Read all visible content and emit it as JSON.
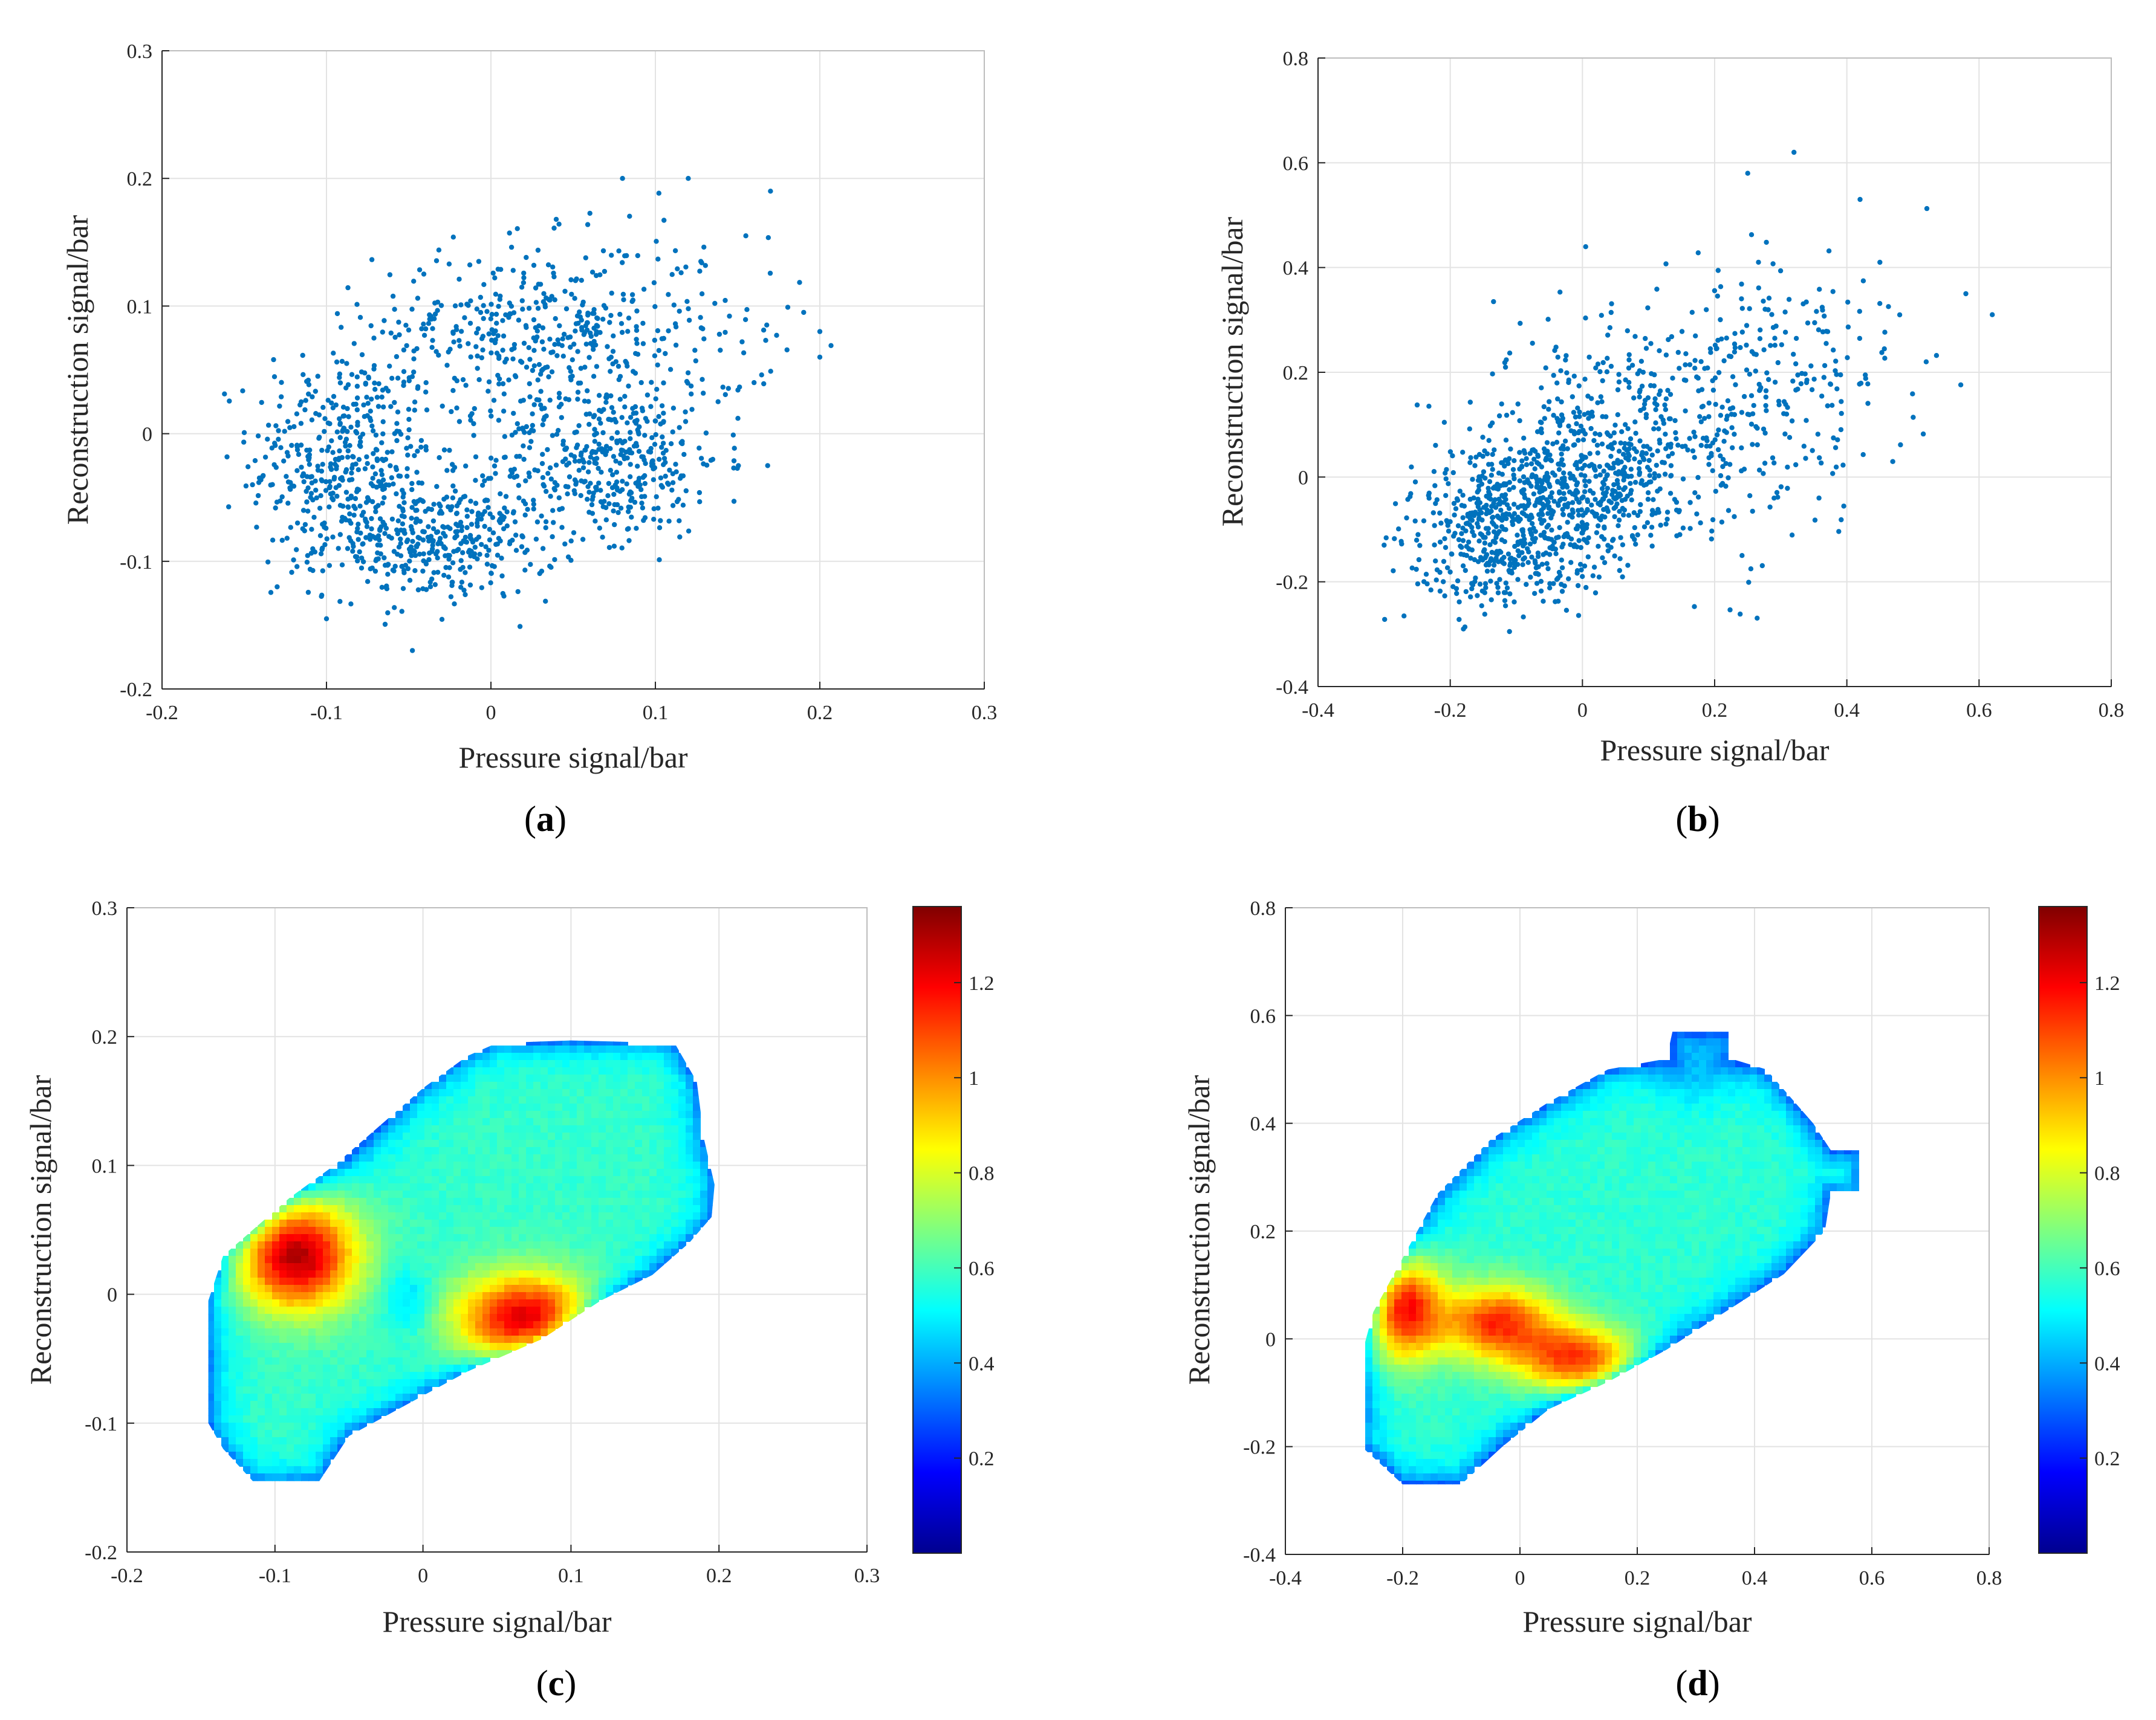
{
  "figure": {
    "panels": [
      {
        "id": "a",
        "label": "a",
        "type": "scatter"
      },
      {
        "id": "b",
        "label": "b",
        "type": "scatter"
      },
      {
        "id": "c",
        "label": "c",
        "type": "heatmap"
      },
      {
        "id": "d",
        "label": "d",
        "type": "heatmap"
      }
    ]
  },
  "colors": {
    "marker": "#0072BD",
    "grid": "#e3e3e3",
    "axis": "#262626",
    "colormap": [
      "#00008f",
      "#0000ff",
      "#00ffff",
      "#7fff7f",
      "#ffff00",
      "#ff0000",
      "#800000"
    ]
  },
  "chart_data": [
    {
      "id": "a",
      "type": "scatter",
      "panel_label": "a",
      "xlabel": "Pressure signal/bar",
      "ylabel": "Reconstruction signal/bar",
      "xlim": [
        -0.2,
        0.3
      ],
      "ylim": [
        -0.2,
        0.3
      ],
      "xticks": [
        -0.2,
        -0.1,
        0,
        0.1,
        0.2,
        0.3
      ],
      "yticks": [
        -0.2,
        -0.1,
        0,
        0.1,
        0.2,
        0.3
      ],
      "xtick_labels": [
        "-0.2",
        "-0.1",
        "0",
        "0.1",
        "0.2",
        "0.3"
      ],
      "ytick_labels": [
        "-0.2",
        "-0.1",
        "0",
        "0.1",
        "0.2",
        "0.3"
      ],
      "grid": true,
      "clusters": [
        {
          "cx": -0.09,
          "cy": -0.02,
          "sx": 0.028,
          "sy": 0.045,
          "n": 420
        },
        {
          "cx": -0.03,
          "cy": -0.085,
          "sx": 0.035,
          "sy": 0.022,
          "n": 380
        },
        {
          "cx": 0.07,
          "cy": -0.02,
          "sx": 0.035,
          "sy": 0.03,
          "n": 400
        },
        {
          "cx": 0.03,
          "cy": 0.08,
          "sx": 0.05,
          "sy": 0.035,
          "n": 420
        },
        {
          "cx": 0.13,
          "cy": 0.07,
          "sx": 0.03,
          "sy": 0.05,
          "n": 60
        }
      ],
      "outliers": [
        [
          0.2,
          0.06
        ],
        [
          0.2,
          0.08
        ],
        [
          0.17,
          0.19
        ],
        [
          0.12,
          0.2
        ],
        [
          0.08,
          0.2
        ],
        [
          -0.145,
          -0.04
        ],
        [
          -0.13,
          -0.12
        ],
        [
          0.16,
          0.04
        ],
        [
          0.155,
          0.155
        ],
        [
          -0.1,
          -0.145
        ]
      ]
    },
    {
      "id": "b",
      "type": "scatter",
      "panel_label": "b",
      "xlabel": "Pressure signal/bar",
      "ylabel": "Reconstruction signal/bar",
      "xlim": [
        -0.4,
        0.8
      ],
      "ylim": [
        -0.4,
        0.8
      ],
      "xticks": [
        -0.4,
        -0.2,
        0,
        0.2,
        0.4,
        0.6,
        0.8
      ],
      "yticks": [
        -0.4,
        -0.2,
        0,
        0.2,
        0.4,
        0.6,
        0.8
      ],
      "xtick_labels": [
        "-0.4",
        "-0.2",
        "0",
        "0.2",
        "0.4",
        "0.6",
        "0.8"
      ],
      "ytick_labels": [
        "-0.4",
        "-0.2",
        "0",
        "0.2",
        "0.4",
        "0.6",
        "0.8"
      ],
      "grid": true,
      "clusters": [
        {
          "cx": -0.02,
          "cy": -0.02,
          "sx": 0.09,
          "sy": 0.07,
          "n": 500
        },
        {
          "cx": -0.12,
          "cy": -0.12,
          "sx": 0.07,
          "sy": 0.07,
          "n": 400
        },
        {
          "cx": 0.12,
          "cy": 0.12,
          "sx": 0.12,
          "sy": 0.12,
          "n": 420
        },
        {
          "cx": 0.33,
          "cy": 0.2,
          "sx": 0.09,
          "sy": 0.12,
          "n": 120
        }
      ],
      "outliers": [
        [
          0.62,
          0.31
        ],
        [
          0.58,
          0.35
        ],
        [
          0.32,
          0.62
        ],
        [
          0.25,
          0.58
        ],
        [
          0.52,
          0.22
        ],
        [
          -0.3,
          -0.13
        ],
        [
          -0.18,
          -0.29
        ],
        [
          0.45,
          0.41
        ],
        [
          0.42,
          0.53
        ]
      ]
    },
    {
      "id": "c",
      "type": "heatmap",
      "panel_label": "c",
      "xlabel": "Pressure signal/bar",
      "ylabel": "Reconstruction signal/bar",
      "xlim": [
        -0.2,
        0.3
      ],
      "ylim": [
        -0.2,
        0.3
      ],
      "xticks": [
        -0.2,
        -0.1,
        0,
        0.1,
        0.2,
        0.3
      ],
      "yticks": [
        -0.2,
        -0.1,
        0,
        0.1,
        0.2,
        0.3
      ],
      "xtick_labels": [
        "-0.2",
        "-0.1",
        "0",
        "0.1",
        "0.2",
        "0.3"
      ],
      "ytick_labels": [
        "-0.2",
        "-0.1",
        "0",
        "0.1",
        "0.2",
        "0.3"
      ],
      "grid": true,
      "colorbar": {
        "range": [
          0,
          1.36
        ],
        "ticks": [
          0.2,
          0.4,
          0.6,
          0.8,
          1,
          1.2
        ],
        "tick_labels": [
          "0.2",
          "0.4",
          "0.6",
          "0.8",
          "1",
          "1.2"
        ]
      },
      "hull": [
        [
          -0.145,
          -0.06
        ],
        [
          -0.145,
          -0.005
        ],
        [
          -0.135,
          0.03
        ],
        [
          -0.12,
          0.045
        ],
        [
          -0.09,
          0.075
        ],
        [
          -0.06,
          0.1
        ],
        [
          -0.03,
          0.13
        ],
        [
          0.0,
          0.16
        ],
        [
          0.03,
          0.185
        ],
        [
          0.05,
          0.195
        ],
        [
          0.1,
          0.197
        ],
        [
          0.17,
          0.195
        ],
        [
          0.185,
          0.165
        ],
        [
          0.19,
          0.12
        ],
        [
          0.197,
          0.085
        ],
        [
          0.195,
          0.06
        ],
        [
          0.18,
          0.04
        ],
        [
          0.155,
          0.015
        ],
        [
          0.12,
          -0.005
        ],
        [
          0.08,
          -0.035
        ],
        [
          0.03,
          -0.06
        ],
        [
          -0.01,
          -0.085
        ],
        [
          -0.05,
          -0.11
        ],
        [
          -0.07,
          -0.145
        ],
        [
          -0.115,
          -0.145
        ],
        [
          -0.135,
          -0.12
        ],
        [
          -0.145,
          -0.1
        ]
      ],
      "blobs": [
        {
          "cx": -0.085,
          "cy": 0.03,
          "sx": 0.028,
          "sy": 0.03,
          "amp": 0.72
        },
        {
          "cx": 0.07,
          "cy": -0.02,
          "sx": 0.033,
          "sy": 0.025,
          "amp": 0.68
        },
        {
          "cx": -0.01,
          "cy": -0.005,
          "sx": 0.012,
          "sy": 0.018,
          "amp": -0.14
        },
        {
          "cx": -0.07,
          "cy": 0.12,
          "sx": 0.03,
          "sy": 0.02,
          "amp": -0.1
        }
      ],
      "base": 0.58,
      "edge_drop": 0.26
    },
    {
      "id": "d",
      "type": "heatmap",
      "panel_label": "d",
      "xlabel": "Pressure signal/bar",
      "ylabel": "Reconstruction signal/bar",
      "xlim": [
        -0.4,
        0.8
      ],
      "ylim": [
        -0.4,
        0.8
      ],
      "xticks": [
        -0.4,
        -0.2,
        0,
        0.2,
        0.4,
        0.6,
        0.8
      ],
      "yticks": [
        -0.4,
        -0.2,
        0,
        0.2,
        0.4,
        0.6,
        0.8
      ],
      "xtick_labels": [
        "-0.4",
        "-0.2",
        "0",
        "0.2",
        "0.4",
        "0.6",
        "0.8"
      ],
      "ytick_labels": [
        "-0.4",
        "-0.2",
        "0",
        "0.2",
        "0.4",
        "0.6",
        "0.8"
      ],
      "grid": true,
      "colorbar": {
        "range": [
          0,
          1.36
        ],
        "ticks": [
          0.2,
          0.4,
          0.6,
          0.8,
          1,
          1.2
        ],
        "tick_labels": [
          "0.2",
          "0.4",
          "0.6",
          "0.8",
          "1",
          "1.2"
        ]
      },
      "hull": [
        [
          -0.27,
          -0.2
        ],
        [
          -0.27,
          -0.03
        ],
        [
          -0.25,
          0.05
        ],
        [
          -0.2,
          0.15
        ],
        [
          -0.14,
          0.27
        ],
        [
          -0.05,
          0.37
        ],
        [
          0.05,
          0.44
        ],
        [
          0.15,
          0.5
        ],
        [
          0.25,
          0.52
        ],
        [
          0.26,
          0.57
        ],
        [
          0.36,
          0.57
        ],
        [
          0.36,
          0.52
        ],
        [
          0.42,
          0.5
        ],
        [
          0.5,
          0.4
        ],
        [
          0.53,
          0.35
        ],
        [
          0.58,
          0.35
        ],
        [
          0.58,
          0.27
        ],
        [
          0.53,
          0.27
        ],
        [
          0.52,
          0.2
        ],
        [
          0.45,
          0.12
        ],
        [
          0.35,
          0.05
        ],
        [
          0.25,
          -0.02
        ],
        [
          0.15,
          -0.08
        ],
        [
          0.05,
          -0.13
        ],
        [
          -0.03,
          -0.2
        ],
        [
          -0.1,
          -0.27
        ],
        [
          -0.2,
          -0.27
        ]
      ],
      "blobs": [
        {
          "cx": -0.2,
          "cy": 0.06,
          "sx": 0.045,
          "sy": 0.07,
          "amp": 0.62
        },
        {
          "cx": -0.04,
          "cy": 0.03,
          "sx": 0.07,
          "sy": 0.05,
          "amp": 0.55
        },
        {
          "cx": 0.1,
          "cy": -0.04,
          "sx": 0.07,
          "sy": 0.045,
          "amp": 0.55
        },
        {
          "cx": 0.3,
          "cy": 0.5,
          "sx": 0.05,
          "sy": 0.05,
          "amp": -0.12
        }
      ],
      "base": 0.57,
      "edge_drop": 0.28
    }
  ]
}
